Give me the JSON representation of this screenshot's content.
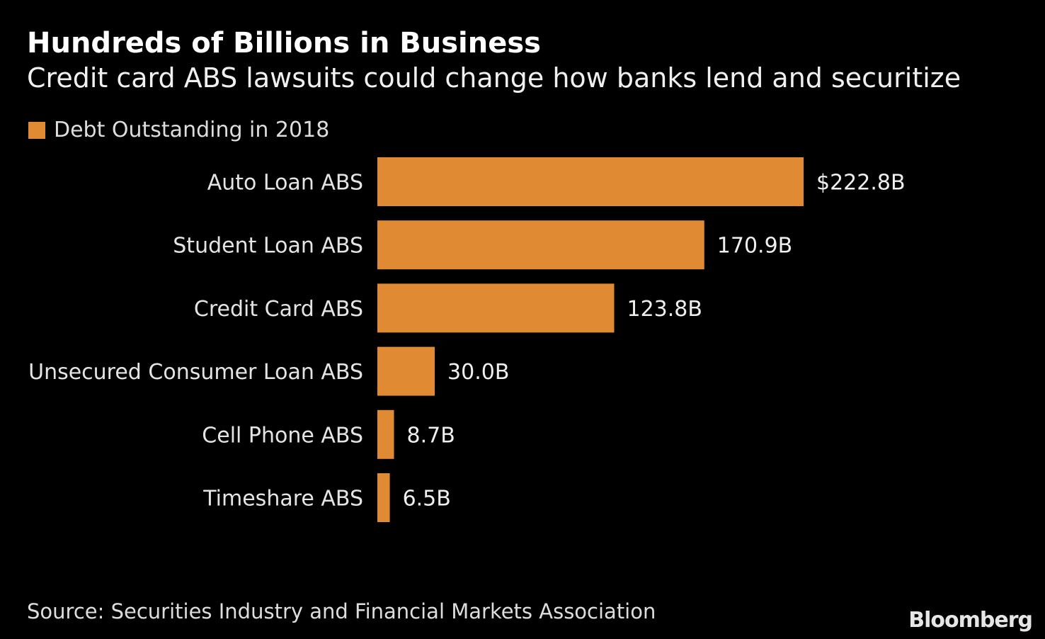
{
  "chart_data": {
    "type": "bar",
    "orientation": "horizontal",
    "title": "Hundreds of Billions in Business",
    "subtitle": "Credit card ABS lawsuits could change how banks lend and securitize",
    "categories": [
      "Auto Loan ABS",
      "Student Loan ABS",
      "Credit Card ABS",
      "Unsecured Consumer Loan ABS",
      "Cell Phone ABS",
      "Timeshare ABS"
    ],
    "series": [
      {
        "name": "Debt Outstanding in 2018",
        "values": [
          222.8,
          170.9,
          123.8,
          30.0,
          8.7,
          6.5
        ],
        "color": "#e08a34"
      }
    ],
    "data_labels": [
      "$222.8B",
      "170.9B",
      "123.8B",
      "30.0B",
      "8.7B",
      "6.5B"
    ],
    "xlim": [
      0,
      222.8
    ],
    "grid": false,
    "legend_position": "top-left",
    "source": "Source: Securities Industry and Financial Markets Association",
    "logo": "Bloomberg"
  }
}
